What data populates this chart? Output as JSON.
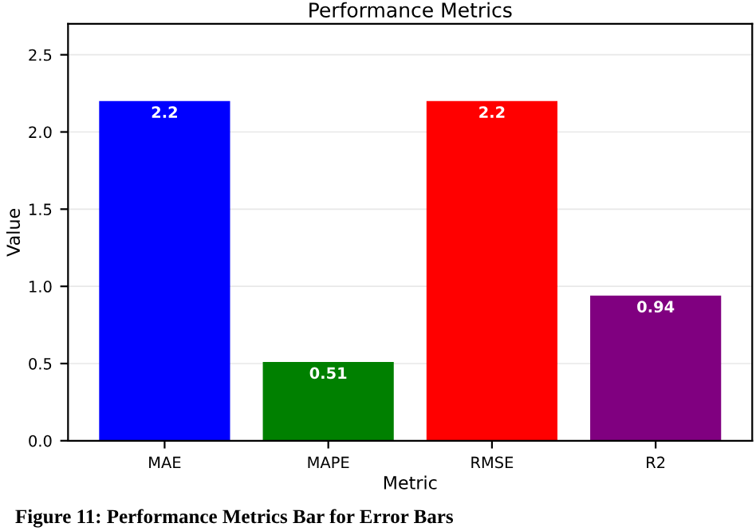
{
  "chart_data": {
    "type": "bar",
    "title": "Performance Metrics",
    "xlabel": "Metric",
    "ylabel": "Value",
    "categories": [
      "MAE",
      "MAPE",
      "RMSE",
      "R2"
    ],
    "values": [
      2.2,
      0.51,
      2.2,
      0.94
    ],
    "colors": [
      "#0000ff",
      "#008000",
      "#ff0000",
      "#800080"
    ],
    "ylim": [
      0,
      2.7
    ],
    "yticks": [
      {
        "value": 0,
        "label": "0.0"
      },
      0.5,
      {
        "value": 1,
        "label": "1.0"
      },
      1.5,
      {
        "value": 2,
        "label": "2.0"
      },
      2.5
    ],
    "grid": "y",
    "data_labels": true,
    "annotations": [
      "Figure 11: Performance Metrics Bar for Error Bars"
    ]
  }
}
